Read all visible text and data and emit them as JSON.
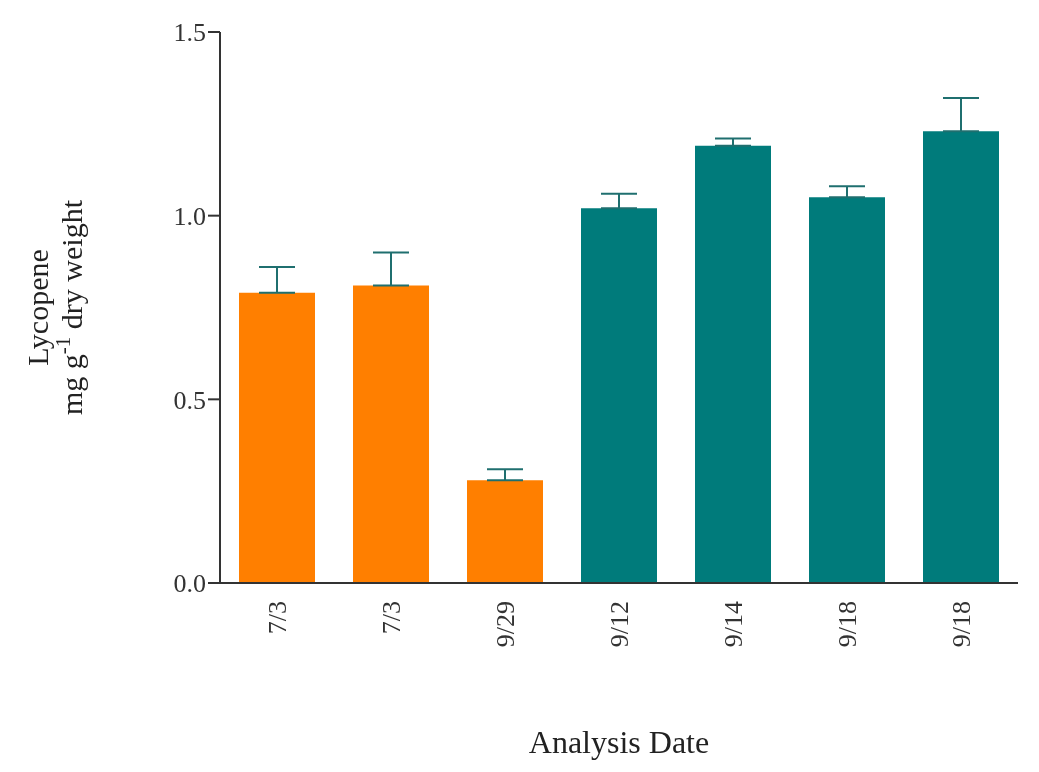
{
  "chart_data": {
    "type": "bar",
    "xlabel": "Analysis Date",
    "ylabel": "Lycopene\nmg g$^{-1}$ dry weight",
    "categories": [
      "7/3",
      "7/3",
      "9/29",
      "9/12",
      "9/14",
      "9/18",
      "9/18"
    ],
    "values": [
      0.79,
      0.81,
      0.28,
      1.02,
      1.19,
      1.05,
      1.23
    ],
    "errors": [
      [
        0.79,
        0.86
      ],
      [
        0.81,
        0.9
      ],
      [
        0.28,
        0.31
      ],
      [
        1.02,
        1.06
      ],
      [
        1.19,
        1.21
      ],
      [
        1.05,
        1.08
      ],
      [
        1.23,
        1.32
      ]
    ],
    "colors": [
      "#ff7f00",
      "#ff7f00",
      "#ff7f00",
      "#007b7b",
      "#007b7b",
      "#007b7b",
      "#007b7b"
    ],
    "ylim": [
      0,
      1.5
    ],
    "yticks": [
      {
        "value": 0,
        "label": "0.0"
      },
      {
        "value": 0.5,
        "label": "0.5"
      },
      {
        "value": 1,
        "label": "1.0"
      },
      {
        "value": 1.5,
        "label": "1.5"
      }
    ],
    "grid": false
  }
}
